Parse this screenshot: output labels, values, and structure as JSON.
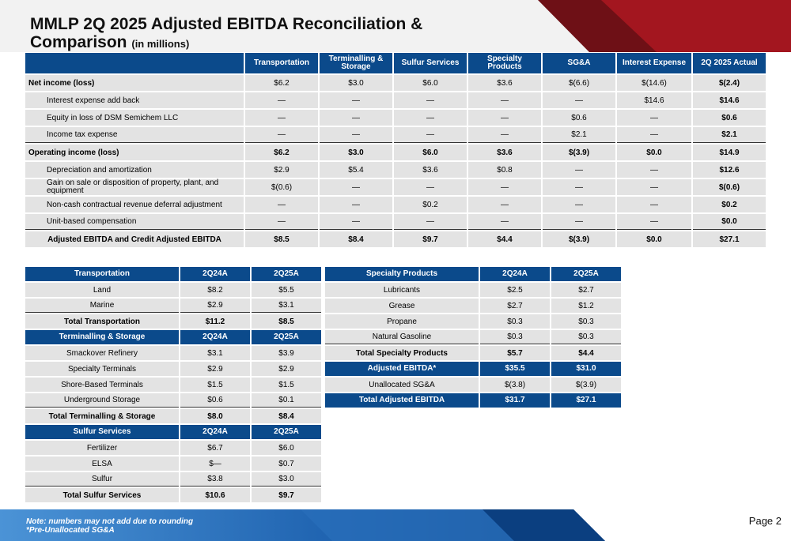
{
  "title": {
    "line1": "MMLP 2Q 2025 Adjusted EBITDA Reconciliation &",
    "line2": "Comparison",
    "suffix": "(in millions)"
  },
  "colors": {
    "header_blue": "#0b4a8b",
    "row_gray": "#e3e3e3",
    "accent_red": "#a3161f"
  },
  "main_table": {
    "columns": [
      "",
      "Transportation",
      "Terminalling & Storage",
      "Sulfur Services",
      "Specialty Products",
      "SG&A",
      "Interest Expense",
      "2Q 2025 Actual"
    ],
    "rows": [
      {
        "label": "Net income (loss)",
        "values": [
          "$6.2",
          "$3.0",
          "$6.0",
          "$3.6",
          "$(6.6)",
          "$(14.6)",
          "$(2.4)"
        ]
      },
      {
        "label": "Interest expense add back",
        "values": [
          "—",
          "—",
          "—",
          "—",
          "—",
          "$14.6",
          "$14.6"
        ]
      },
      {
        "label": "Equity in loss of DSM Semichem LLC",
        "values": [
          "—",
          "—",
          "—",
          "—",
          "$0.6",
          "—",
          "$0.6"
        ]
      },
      {
        "label": "Income tax expense",
        "values": [
          "—",
          "—",
          "—",
          "—",
          "$2.1",
          "—",
          "$2.1"
        ]
      },
      {
        "label": "Operating income (loss)",
        "values": [
          "$6.2",
          "$3.0",
          "$6.0",
          "$3.6",
          "$(3.9)",
          "$0.0",
          "$14.9"
        ]
      },
      {
        "label": "Depreciation and amortization",
        "values": [
          "$2.9",
          "$5.4",
          "$3.6",
          "$0.8",
          "—",
          "—",
          "$12.6"
        ]
      },
      {
        "label": "Gain on sale or disposition of property, plant, and equipment",
        "values": [
          "$(0.6)",
          "—",
          "—",
          "—",
          "—",
          "—",
          "$(0.6)"
        ]
      },
      {
        "label": "Non-cash contractual revenue deferral adjustment",
        "values": [
          "—",
          "—",
          "$0.2",
          "—",
          "—",
          "—",
          "$0.2"
        ]
      },
      {
        "label": "Unit-based compensation",
        "values": [
          "—",
          "—",
          "—",
          "—",
          "—",
          "—",
          "$0.0"
        ]
      },
      {
        "label": "Adjusted EBITDA and Credit Adjusted EBITDA",
        "values": [
          "$8.5",
          "$8.4",
          "$9.7",
          "$4.4",
          "$(3.9)",
          "$0.0",
          "$27.1"
        ]
      }
    ]
  },
  "left_table": {
    "sections": [
      {
        "header": [
          "Transportation",
          "2Q24A",
          "2Q25A"
        ],
        "rows": [
          [
            "Land",
            "$8.2",
            "$5.5"
          ],
          [
            "Marine",
            "$2.9",
            "$3.1"
          ]
        ],
        "total": [
          "Total Transportation",
          "$11.2",
          "$8.5"
        ]
      },
      {
        "header": [
          "Terminalling & Storage",
          "2Q24A",
          "2Q25A"
        ],
        "rows": [
          [
            "Smackover Refinery",
            "$3.1",
            "$3.9"
          ],
          [
            "Specialty Terminals",
            "$2.9",
            "$2.9"
          ],
          [
            "Shore-Based Terminals",
            "$1.5",
            "$1.5"
          ],
          [
            "Underground Storage",
            "$0.6",
            "$0.1"
          ]
        ],
        "total": [
          "Total Terminalling & Storage",
          "$8.0",
          "$8.4"
        ]
      },
      {
        "header": [
          "Sulfur Services",
          "2Q24A",
          "2Q25A"
        ],
        "rows": [
          [
            "Fertilizer",
            "$6.7",
            "$6.0"
          ],
          [
            "ELSA",
            "$—",
            "$0.7"
          ],
          [
            "Sulfur",
            "$3.8",
            "$3.0"
          ]
        ],
        "total": [
          "Total Sulfur Services",
          "$10.6",
          "$9.7"
        ]
      }
    ]
  },
  "right_table": {
    "header": [
      "Specialty Products",
      "2Q24A",
      "2Q25A"
    ],
    "rows": [
      [
        "Lubricants",
        "$2.5",
        "$2.7"
      ],
      [
        "Grease",
        "$2.7",
        "$1.2"
      ],
      [
        "Propane",
        "$0.3",
        "$0.3"
      ],
      [
        "Natural Gasoline",
        "$0.3",
        "$0.3"
      ]
    ],
    "total": [
      "Total Specialty Products",
      "$5.7",
      "$4.4"
    ],
    "adjusted": [
      "Adjusted EBITDA*",
      "$35.5",
      "$31.0"
    ],
    "unallocated": [
      "Unallocated SG&A",
      "$(3.8)",
      "$(3.9)"
    ],
    "total_adjusted": [
      "Total Adjusted EBITDA",
      "$31.7",
      "$27.1"
    ]
  },
  "footer": {
    "note1": "Note: numbers may not add due to rounding",
    "note2": "*Pre-Unallocated SG&A",
    "page": "Page 2"
  }
}
